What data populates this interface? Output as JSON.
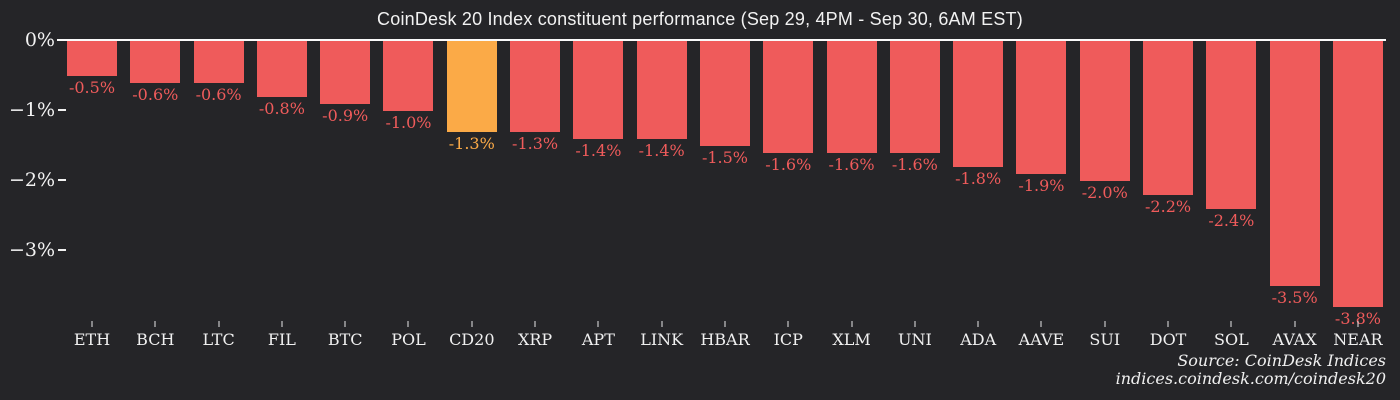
{
  "title": "CoinDesk 20 Index constituent performance (Sep 29, 4PM - Sep 30, 6AM EST)",
  "chart_data": {
    "type": "bar",
    "categories": [
      "ETH",
      "BCH",
      "LTC",
      "FIL",
      "BTC",
      "POL",
      "CD20",
      "XRP",
      "APT",
      "LINK",
      "HBAR",
      "ICP",
      "XLM",
      "UNI",
      "ADA",
      "AAVE",
      "SUI",
      "DOT",
      "SOL",
      "AVAX",
      "NEAR"
    ],
    "values": [
      -0.5,
      -0.6,
      -0.6,
      -0.8,
      -0.9,
      -1.0,
      -1.3,
      -1.3,
      -1.4,
      -1.4,
      -1.5,
      -1.6,
      -1.6,
      -1.6,
      -1.8,
      -1.9,
      -2.0,
      -2.2,
      -2.4,
      -3.5,
      -3.8
    ],
    "value_labels": [
      "-0.5%",
      "-0.6%",
      "-0.6%",
      "-0.8%",
      "-0.9%",
      "-1.0%",
      "-1.3%",
      "-1.3%",
      "-1.4%",
      "-1.4%",
      "-1.5%",
      "-1.6%",
      "-1.6%",
      "-1.6%",
      "-1.8%",
      "-1.9%",
      "-2.0%",
      "-2.2%",
      "-2.4%",
      "-3.5%",
      "-3.8%"
    ],
    "highlight_category": "CD20",
    "title": "CoinDesk 20 Index constituent performance (Sep 29, 4PM - Sep 30, 6AM EST)",
    "xlabel": "",
    "ylabel": "",
    "ylim": [
      -4,
      0
    ],
    "yticks": [
      "0%",
      "−1%",
      "−2%",
      "−3%"
    ],
    "grid": false,
    "legend": false,
    "colors": {
      "bar": "#ef5b5b",
      "highlight": "#fbaa47",
      "background": "#252528",
      "axis": "#fafafa",
      "text": "#f2f2f2"
    }
  },
  "source": {
    "line1": "Source: CoinDesk Indices",
    "line2": "indices.coindesk.com/coindesk20"
  }
}
